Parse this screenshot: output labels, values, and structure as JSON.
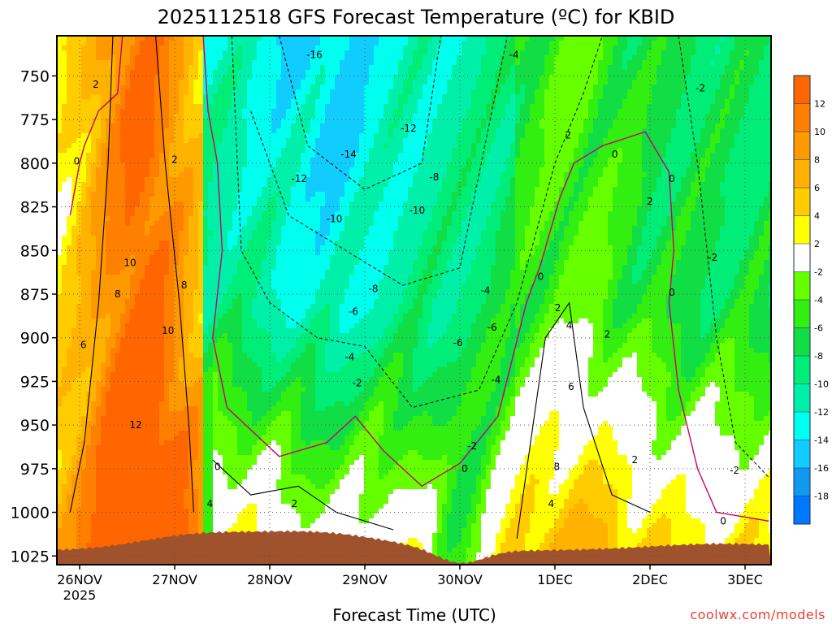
{
  "chart_data": {
    "type": "heatmap",
    "title": "2025112518 GFS Forecast Temperature (ºC) for KBID",
    "xlabel": "Forecast Time (UTC)",
    "ylabel": "",
    "credit": "coolwx.com/models",
    "x_ticks": [
      "26NOV",
      "27NOV",
      "28NOV",
      "29NOV",
      "30NOV",
      "1DEC",
      "2DEC",
      "3DEC"
    ],
    "x_year_label": "2025",
    "y_ticks": [
      750,
      775,
      800,
      825,
      850,
      875,
      900,
      925,
      950,
      975,
      1000,
      1025
    ],
    "ylim": [
      1030,
      727
    ],
    "xlim_days": [
      -0.25,
      7.25
    ],
    "colorbar": {
      "ticks": [
        12,
        10,
        8,
        6,
        4,
        2,
        -2,
        -4,
        -6,
        -8,
        -10,
        -12,
        -14,
        -16,
        -18
      ],
      "levels": [
        14,
        12,
        10,
        8,
        6,
        4,
        2,
        -2,
        -4,
        -6,
        -8,
        -10,
        -12,
        -14,
        -16,
        -18,
        -20
      ],
      "colors": [
        "#ff6600",
        "#ff8000",
        "#ff9900",
        "#ffb300",
        "#ffcc00",
        "#ffff00",
        "#ffffff",
        "#66ff00",
        "#33ee11",
        "#11dd44",
        "#00ee77",
        "#00f0aa",
        "#00ffee",
        "#11ccff",
        "#1199ee",
        "#0077ff"
      ]
    },
    "ground_color": "#a0522d",
    "zero_contour_color": "#c8006e",
    "contour_labels": [
      {
        "text": "-16",
        "d": 2.47,
        "p": 738
      },
      {
        "text": "-14",
        "d": 2.83,
        "p": 795
      },
      {
        "text": "-12",
        "d": 2.31,
        "p": 809
      },
      {
        "text": "-12",
        "d": 3.46,
        "p": 780
      },
      {
        "text": "-10",
        "d": 2.68,
        "p": 832
      },
      {
        "text": "-10",
        "d": 3.55,
        "p": 827
      },
      {
        "text": "-8",
        "d": 3.73,
        "p": 808
      },
      {
        "text": "-8",
        "d": 3.09,
        "p": 872
      },
      {
        "text": "-6",
        "d": 2.88,
        "p": 885
      },
      {
        "text": "-6",
        "d": 3.98,
        "p": 903
      },
      {
        "text": "-6",
        "d": 4.34,
        "p": 894
      },
      {
        "text": "-4",
        "d": 2.84,
        "p": 911
      },
      {
        "text": "-4",
        "d": 4.27,
        "p": 873
      },
      {
        "text": "-4",
        "d": 4.38,
        "p": 924
      },
      {
        "text": "-4",
        "d": 4.57,
        "p": 738
      },
      {
        "text": "-2",
        "d": 2.92,
        "p": 926
      },
      {
        "text": "-2",
        "d": 4.13,
        "p": 962
      },
      {
        "text": "-2",
        "d": 6.53,
        "p": 757
      },
      {
        "text": "-2",
        "d": 6.66,
        "p": 854
      },
      {
        "text": "-2",
        "d": 6.89,
        "p": 976
      },
      {
        "text": "2",
        "d": 0.17,
        "p": 755
      },
      {
        "text": "2",
        "d": 1.0,
        "p": 798
      },
      {
        "text": "2",
        "d": 5.14,
        "p": 784
      },
      {
        "text": "2",
        "d": 5.03,
        "p": 883
      },
      {
        "text": "2",
        "d": 6.0,
        "p": 822
      },
      {
        "text": "2",
        "d": 5.55,
        "p": 898
      },
      {
        "text": "2",
        "d": 5.84,
        "p": 970
      },
      {
        "text": "2",
        "d": 2.26,
        "p": 995
      },
      {
        "text": "4",
        "d": 1.37,
        "p": 995
      },
      {
        "text": "4",
        "d": 5.15,
        "p": 893
      },
      {
        "text": "4",
        "d": 4.96,
        "p": 995
      },
      {
        "text": "6",
        "d": 5.17,
        "p": 928
      },
      {
        "text": "6",
        "d": 0.04,
        "p": 904
      },
      {
        "text": "8",
        "d": 0.4,
        "p": 875
      },
      {
        "text": "8",
        "d": 1.1,
        "p": 870
      },
      {
        "text": "8",
        "d": 5.02,
        "p": 974
      },
      {
        "text": "10",
        "d": 0.53,
        "p": 857
      },
      {
        "text": "10",
        "d": 0.93,
        "p": 896
      },
      {
        "text": "12",
        "d": 0.59,
        "p": 950
      },
      {
        "text": "0",
        "d": -0.03,
        "p": 799
      },
      {
        "text": "0",
        "d": 1.45,
        "p": 974
      },
      {
        "text": "0",
        "d": 4.05,
        "p": 975
      },
      {
        "text": "0",
        "d": 4.85,
        "p": 865
      },
      {
        "text": "0",
        "d": 5.63,
        "p": 795
      },
      {
        "text": "0",
        "d": 6.23,
        "p": 809
      },
      {
        "text": "0",
        "d": 6.23,
        "p": 874
      },
      {
        "text": "0",
        "d": 6.77,
        "p": 1005
      }
    ]
  }
}
